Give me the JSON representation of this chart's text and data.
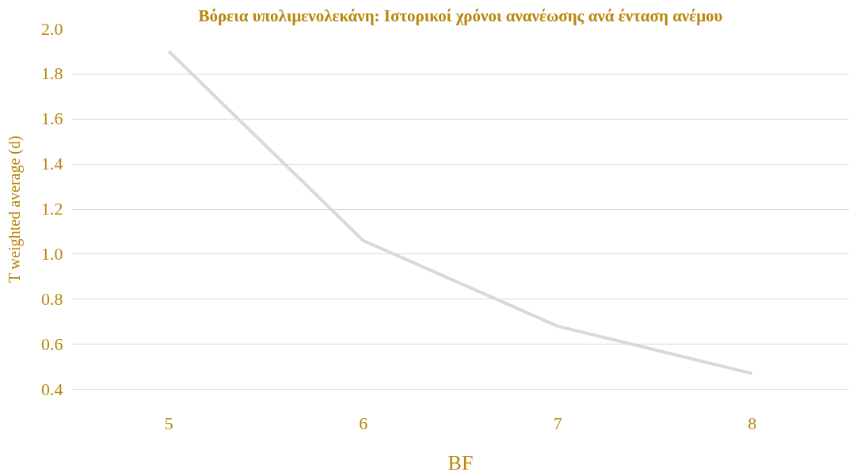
{
  "chart_data": {
    "type": "line",
    "title": "Βόρεια υπολιμενολεκάνη: Ιστορικοί χρόνοι ανανέωσης ανά ένταση ανέμου",
    "xlabel": "BF",
    "ylabel": "T weighted average (d)",
    "categories": [
      "5",
      "6",
      "7",
      "8"
    ],
    "series": [
      {
        "color": "#d9d9d9",
        "values": [
          1.9,
          1.06,
          0.68,
          0.47
        ]
      }
    ],
    "ylim": [
      0.4,
      2.0
    ],
    "yticks": [
      {
        "value": 0.4,
        "label": "0.4"
      },
      {
        "value": 0.6,
        "label": "0.6"
      },
      {
        "value": 0.8,
        "label": "0.8"
      },
      {
        "value": 1.0,
        "label": "1.0"
      },
      {
        "value": 1.2,
        "label": "1.2"
      },
      {
        "value": 1.4,
        "label": "1.4"
      },
      {
        "value": 1.6,
        "label": "1.6"
      },
      {
        "value": 1.8,
        "label": "1.8"
      },
      {
        "value": 2.0,
        "label": "2.0"
      }
    ],
    "grid": "y",
    "marker": "none",
    "line_style": "solid"
  }
}
